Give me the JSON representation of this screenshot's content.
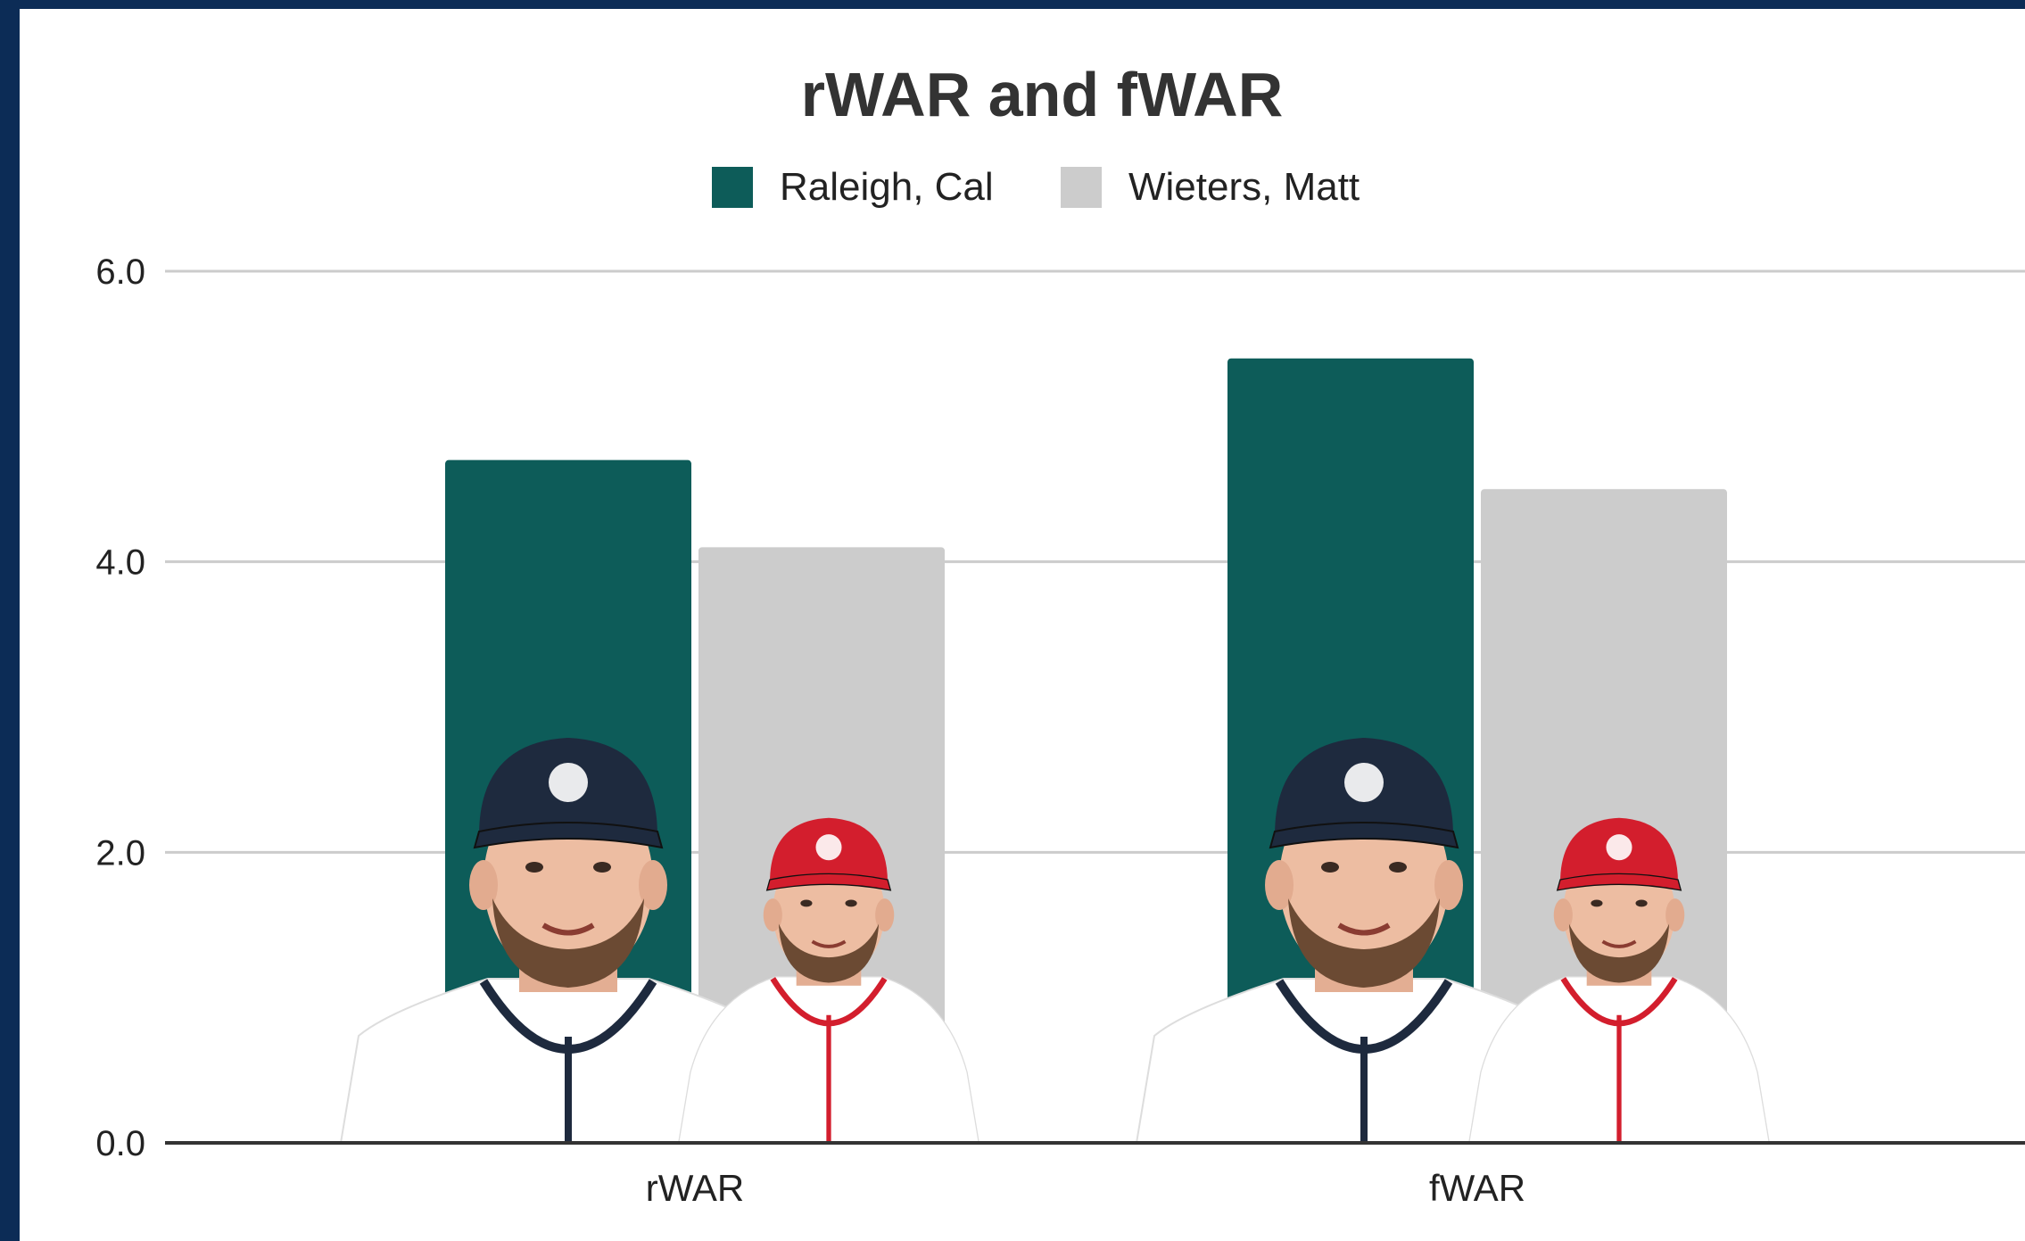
{
  "chart_data": {
    "type": "bar",
    "title": "rWAR and fWAR",
    "categories": [
      "rWAR",
      "fWAR"
    ],
    "series": [
      {
        "name": "Raleigh, Cal",
        "values": [
          4.7,
          5.4
        ],
        "color": "#0d5c59"
      },
      {
        "name": "Wieters, Matt",
        "values": [
          4.1,
          4.5
        ],
        "color": "#cccccc"
      }
    ],
    "y_ticks": [
      "0.0",
      "2.0",
      "4.0",
      "6.0"
    ],
    "ylim": [
      0,
      6
    ],
    "grid": true,
    "legend_position": "top-center",
    "xlabel": "",
    "ylabel": ""
  },
  "colors": {
    "page_border": "#0c2c56",
    "background": "#ffffff",
    "gridline": "#cccccc",
    "baseline": "#333333"
  },
  "photos": [
    {
      "category": "rWAR",
      "player": "Raleigh, Cal",
      "cap_color": "#1e2a3e",
      "jersey_color": "#ffffff",
      "trim_color": "#1e2a3e"
    },
    {
      "category": "rWAR",
      "player": "Wieters, Matt",
      "cap_color": "#d31e2d",
      "jersey_color": "#ffffff",
      "trim_color": "#d31e2d"
    },
    {
      "category": "fWAR",
      "player": "Raleigh, Cal",
      "cap_color": "#1e2a3e",
      "jersey_color": "#ffffff",
      "trim_color": "#1e2a3e"
    },
    {
      "category": "fWAR",
      "player": "Wieters, Matt",
      "cap_color": "#d31e2d",
      "jersey_color": "#ffffff",
      "trim_color": "#d31e2d"
    }
  ]
}
